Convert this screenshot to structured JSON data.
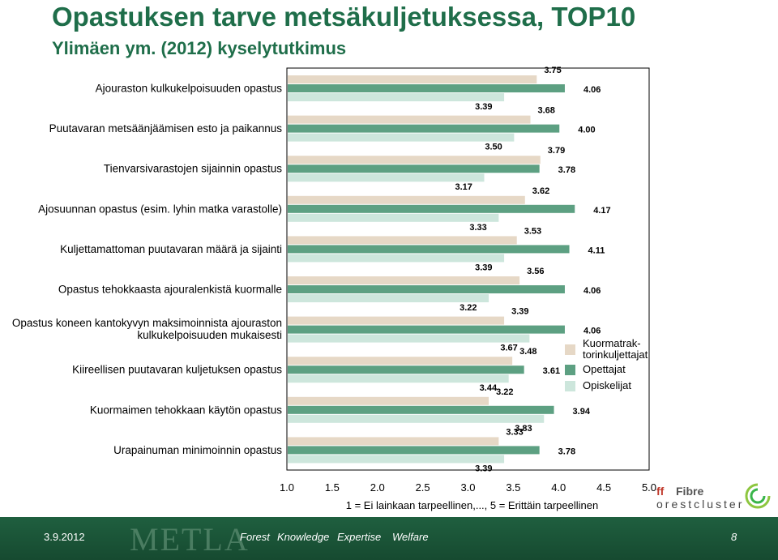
{
  "title": "Opastuksen tarve metsäkuljetuksessa, TOP10",
  "subtitle": "Ylimäen ym. (2012) kyselytutkimus",
  "chart_data": {
    "type": "bar",
    "orientation": "horizontal",
    "categories": [
      "Ajouraston kulkukelpoisuuden opastus",
      "Puutavaran metsäänjäämisen esto ja paikannus",
      "Tienvarsivarastojen sijainnin opastus",
      "Ajosuunnan opastus (esim. lyhin matka varastolle)",
      "Kuljettamattoman puutavaran määrä ja sijainti",
      "Opastus tehokkaasta ajouralenkistä kuormalle",
      "Opastus koneen kantokyvyn maksimoinnista ajouraston kulkukelpoisuuden mukaisesti",
      "Kiireellisen puutavaran kuljetuksen opastus",
      "Kuormaimen tehokkaan käytön opastus",
      "Urapainuman minimoinnin opastus"
    ],
    "series": [
      {
        "name": "Kuormatrak-torinkuljettajat",
        "color": "#e6d8c6",
        "values": [
          3.75,
          3.68,
          3.79,
          3.62,
          3.53,
          3.56,
          3.39,
          3.48,
          3.22,
          3.33
        ]
      },
      {
        "name": "Opettajat",
        "color": "#5da082",
        "values": [
          4.06,
          4.0,
          3.78,
          4.17,
          4.11,
          4.06,
          4.06,
          3.61,
          3.94,
          3.78
        ]
      },
      {
        "name": "Opiskelijat",
        "color": "#cde6dc",
        "values": [
          3.39,
          3.5,
          3.17,
          3.33,
          3.39,
          3.22,
          3.67,
          3.44,
          3.83,
          3.39
        ]
      }
    ],
    "value_labels": [
      [
        "3.75",
        "4.06",
        "3.39"
      ],
      [
        "3.68",
        "4.00",
        "3.50"
      ],
      [
        "3.79",
        "3.78",
        "3.17"
      ],
      [
        "3.62",
        "4.17",
        "3.33"
      ],
      [
        "3.53",
        "4.11",
        "3.39"
      ],
      [
        "3.56",
        "4.06",
        "3.22"
      ],
      [
        "3.39",
        "4.06",
        "3.67"
      ],
      [
        "3.48",
        "3.61",
        "3.44"
      ],
      [
        "3.22",
        "3.94",
        "3.83"
      ],
      [
        "3.33",
        "3.78",
        "3.39"
      ]
    ],
    "xlim": [
      1.0,
      5.0
    ],
    "xticks": [
      "1.0",
      "1.5",
      "2.0",
      "2.5",
      "3.0",
      "3.5",
      "4.0",
      "4.5",
      "5.0"
    ],
    "xlabel": "1 = Ei lainkaan tarpeellinen,..., 5 = Erittäin tarpeellinen",
    "legend_position": "right",
    "grid": false
  },
  "footer": {
    "date": "3.9.2012",
    "brand": "METLA",
    "tags": [
      "Forest",
      "Knowledge",
      "Expertise",
      "Welfare"
    ],
    "page": "8"
  },
  "logo": {
    "line1_a": "ff",
    "line1_b": "Fibre",
    "line2": "orestcluster"
  }
}
